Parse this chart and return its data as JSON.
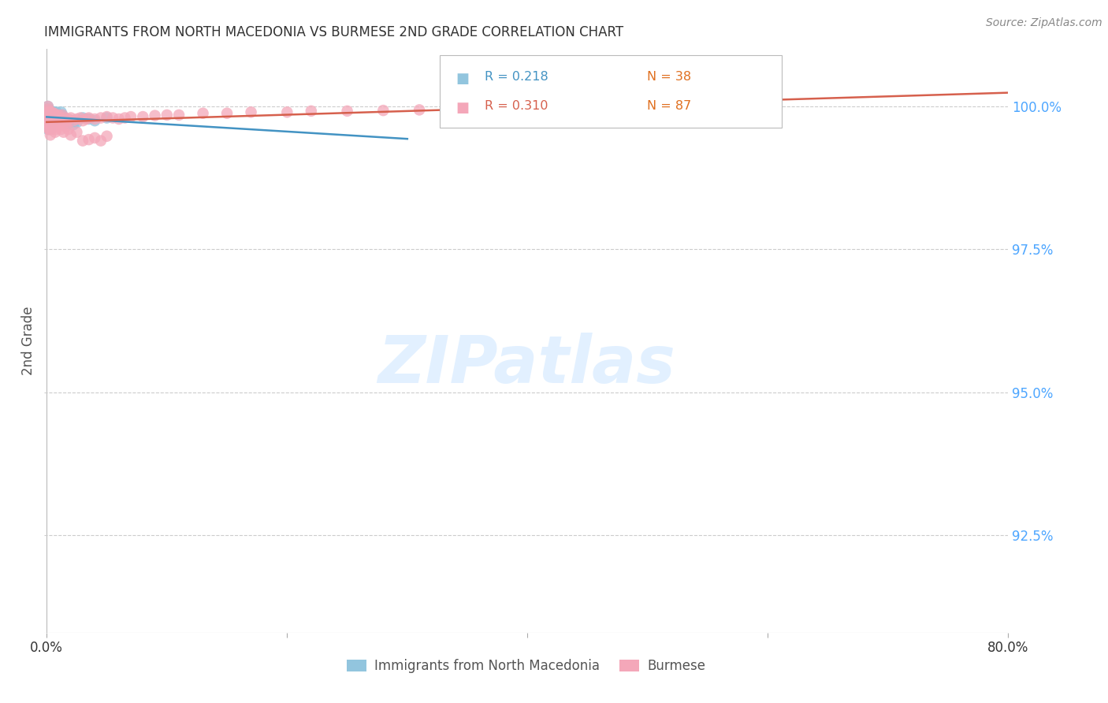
{
  "title": "IMMIGRANTS FROM NORTH MACEDONIA VS BURMESE 2ND GRADE CORRELATION CHART",
  "source": "Source: ZipAtlas.com",
  "ylabel": "2nd Grade",
  "right_ytick_vals": [
    1.0,
    0.975,
    0.95,
    0.925
  ],
  "right_ytick_labels": [
    "100.0%",
    "97.5%",
    "95.0%",
    "92.5%"
  ],
  "blue_color": "#92c5de",
  "pink_color": "#f4a7b9",
  "blue_line_color": "#4393c3",
  "pink_line_color": "#d6604d",
  "right_axis_color": "#4da6ff",
  "watermark_color": "#ddeeff",
  "N_color": "#e07020",
  "xlim_min": -0.002,
  "xlim_max": 0.8,
  "ylim_min": 0.908,
  "ylim_max": 1.01,
  "blue_x": [
    0.0005,
    0.001,
    0.001,
    0.001,
    0.001,
    0.001,
    0.001,
    0.002,
    0.002,
    0.002,
    0.002,
    0.002,
    0.003,
    0.003,
    0.003,
    0.003,
    0.004,
    0.004,
    0.004,
    0.005,
    0.005,
    0.006,
    0.006,
    0.007,
    0.008,
    0.009,
    0.01,
    0.011,
    0.012,
    0.013,
    0.015,
    0.018,
    0.022,
    0.025,
    0.03,
    0.035,
    0.04,
    0.05
  ],
  "blue_y": [
    0.999,
    0.9995,
    1.0,
    0.9985,
    0.9975,
    0.997,
    0.996,
    0.999,
    0.9995,
    0.998,
    0.997,
    0.9965,
    0.999,
    0.9985,
    0.9975,
    0.996,
    0.999,
    0.998,
    0.997,
    0.9985,
    0.9975,
    0.999,
    0.998,
    0.9985,
    0.999,
    0.9985,
    0.998,
    0.9985,
    0.999,
    0.9985,
    0.9975,
    0.997,
    0.9968,
    0.9972,
    0.998,
    0.9978,
    0.9975,
    0.998
  ],
  "pink_x": [
    0.0005,
    0.001,
    0.001,
    0.001,
    0.001,
    0.001,
    0.002,
    0.002,
    0.002,
    0.002,
    0.002,
    0.003,
    0.003,
    0.003,
    0.003,
    0.004,
    0.004,
    0.004,
    0.004,
    0.005,
    0.005,
    0.005,
    0.006,
    0.006,
    0.007,
    0.007,
    0.008,
    0.008,
    0.009,
    0.01,
    0.01,
    0.011,
    0.012,
    0.013,
    0.014,
    0.015,
    0.017,
    0.018,
    0.02,
    0.022,
    0.025,
    0.028,
    0.03,
    0.033,
    0.035,
    0.04,
    0.045,
    0.05,
    0.055,
    0.06,
    0.065,
    0.07,
    0.08,
    0.09,
    0.1,
    0.11,
    0.13,
    0.15,
    0.17,
    0.2,
    0.22,
    0.25,
    0.28,
    0.31,
    0.35,
    0.002,
    0.003,
    0.004,
    0.005,
    0.006,
    0.007,
    0.008,
    0.009,
    0.01,
    0.012,
    0.014,
    0.016,
    0.018,
    0.02,
    0.025,
    0.03,
    0.035,
    0.04,
    0.045,
    0.05,
    0.53,
    0.002
  ],
  "pink_y": [
    0.999,
    0.9995,
    1.0,
    0.9985,
    0.9975,
    0.997,
    0.999,
    0.9985,
    0.998,
    0.997,
    0.996,
    0.999,
    0.9985,
    0.9975,
    0.9965,
    0.999,
    0.998,
    0.9975,
    0.9965,
    0.9985,
    0.9978,
    0.9972,
    0.9988,
    0.9978,
    0.9985,
    0.9975,
    0.9982,
    0.9972,
    0.9978,
    0.9985,
    0.9975,
    0.998,
    0.9978,
    0.9985,
    0.9975,
    0.998,
    0.9975,
    0.9978,
    0.998,
    0.9975,
    0.9978,
    0.998,
    0.9975,
    0.9978,
    0.998,
    0.9978,
    0.998,
    0.9982,
    0.998,
    0.9978,
    0.998,
    0.9982,
    0.9982,
    0.9984,
    0.9985,
    0.9985,
    0.9988,
    0.9988,
    0.999,
    0.999,
    0.9992,
    0.9992,
    0.9993,
    0.9994,
    0.9995,
    0.996,
    0.995,
    0.996,
    0.9965,
    0.997,
    0.9955,
    0.996,
    0.9965,
    0.997,
    0.996,
    0.9955,
    0.9965,
    0.996,
    0.995,
    0.9955,
    0.994,
    0.9942,
    0.9945,
    0.994,
    0.9948,
    1.0,
    0.998
  ]
}
